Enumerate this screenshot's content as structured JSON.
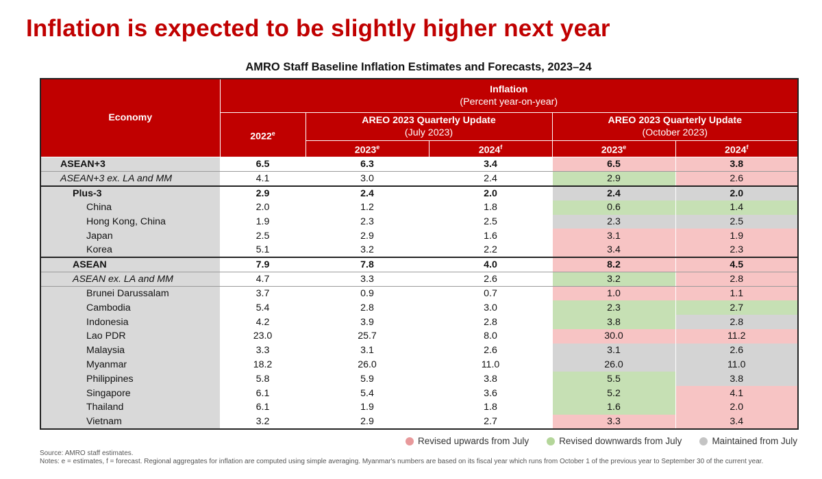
{
  "title": "Inflation is expected to be slightly higher next year",
  "table_title": "AMRO Staff Baseline Inflation Estimates and Forecasts, 2023–24",
  "colors": {
    "accent": "#c00000",
    "up": "#f7c4c4",
    "down": "#c6e0b4",
    "same": "#d4d4d4"
  },
  "header": {
    "economy": "Economy",
    "inflation": "Inflation",
    "inflation_unit": "(Percent year-on-year)",
    "col_2022": "2022",
    "col_2022_sup": "e",
    "july_group": "AREO 2023 Quarterly Update",
    "july_sub": "(July 2023)",
    "oct_group": "AREO 2023 Quarterly Update",
    "oct_sub": "(October 2023)",
    "y2023": "2023",
    "y2023_sup": "e",
    "y2024": "2024",
    "y2024_sup": "f"
  },
  "rows": [
    {
      "name": "ASEAN+3",
      "level": 0,
      "style": "bold",
      "v2022": "6.5",
      "jul2023": "6.3",
      "jul2024": "3.4",
      "oct2023": "6.5",
      "oct2024": "3.8",
      "rev2023": "up",
      "rev2024": "up"
    },
    {
      "name": "ASEAN+3 ex. LA and MM",
      "level": 0,
      "style": "italic",
      "v2022": "4.1",
      "jul2023": "3.0",
      "jul2024": "2.4",
      "oct2023": "2.9",
      "oct2024": "2.6",
      "rev2023": "down",
      "rev2024": "up"
    },
    {
      "name": "Plus-3",
      "level": 1,
      "style": "bold",
      "v2022": "2.9",
      "jul2023": "2.4",
      "jul2024": "2.0",
      "oct2023": "2.4",
      "oct2024": "2.0",
      "rev2023": "same",
      "rev2024": "same"
    },
    {
      "name": "China",
      "level": 2,
      "style": "normal",
      "v2022": "2.0",
      "jul2023": "1.2",
      "jul2024": "1.8",
      "oct2023": "0.6",
      "oct2024": "1.4",
      "rev2023": "down",
      "rev2024": "down"
    },
    {
      "name": "Hong Kong, China",
      "level": 2,
      "style": "normal",
      "v2022": "1.9",
      "jul2023": "2.3",
      "jul2024": "2.5",
      "oct2023": "2.3",
      "oct2024": "2.5",
      "rev2023": "same",
      "rev2024": "same"
    },
    {
      "name": "Japan",
      "level": 2,
      "style": "normal",
      "v2022": "2.5",
      "jul2023": "2.9",
      "jul2024": "1.6",
      "oct2023": "3.1",
      "oct2024": "1.9",
      "rev2023": "up",
      "rev2024": "up"
    },
    {
      "name": "Korea",
      "level": 2,
      "style": "normal",
      "v2022": "5.1",
      "jul2023": "3.2",
      "jul2024": "2.2",
      "oct2023": "3.4",
      "oct2024": "2.3",
      "rev2023": "up",
      "rev2024": "up"
    },
    {
      "name": "ASEAN",
      "level": 1,
      "style": "bold",
      "v2022": "7.9",
      "jul2023": "7.8",
      "jul2024": "4.0",
      "oct2023": "8.2",
      "oct2024": "4.5",
      "rev2023": "up",
      "rev2024": "up"
    },
    {
      "name": "ASEAN ex. LA and MM",
      "level": 1,
      "style": "italic",
      "v2022": "4.7",
      "jul2023": "3.3",
      "jul2024": "2.6",
      "oct2023": "3.2",
      "oct2024": "2.8",
      "rev2023": "down",
      "rev2024": "up"
    },
    {
      "name": "Brunei Darussalam",
      "level": 2,
      "style": "normal",
      "v2022": "3.7",
      "jul2023": "0.9",
      "jul2024": "0.7",
      "oct2023": "1.0",
      "oct2024": "1.1",
      "rev2023": "up",
      "rev2024": "up"
    },
    {
      "name": "Cambodia",
      "level": 2,
      "style": "normal",
      "v2022": "5.4",
      "jul2023": "2.8",
      "jul2024": "3.0",
      "oct2023": "2.3",
      "oct2024": "2.7",
      "rev2023": "down",
      "rev2024": "down"
    },
    {
      "name": "Indonesia",
      "level": 2,
      "style": "normal",
      "v2022": "4.2",
      "jul2023": "3.9",
      "jul2024": "2.8",
      "oct2023": "3.8",
      "oct2024": "2.8",
      "rev2023": "down",
      "rev2024": "same"
    },
    {
      "name": "Lao PDR",
      "level": 2,
      "style": "normal",
      "v2022": "23.0",
      "jul2023": "25.7",
      "jul2024": "8.0",
      "oct2023": "30.0",
      "oct2024": "11.2",
      "rev2023": "up",
      "rev2024": "up"
    },
    {
      "name": "Malaysia",
      "level": 2,
      "style": "normal",
      "v2022": "3.3",
      "jul2023": "3.1",
      "jul2024": "2.6",
      "oct2023": "3.1",
      "oct2024": "2.6",
      "rev2023": "same",
      "rev2024": "same"
    },
    {
      "name": "Myanmar",
      "level": 2,
      "style": "normal",
      "v2022": "18.2",
      "jul2023": "26.0",
      "jul2024": "11.0",
      "oct2023": "26.0",
      "oct2024": "11.0",
      "rev2023": "same",
      "rev2024": "same"
    },
    {
      "name": "Philippines",
      "level": 2,
      "style": "normal",
      "v2022": "5.8",
      "jul2023": "5.9",
      "jul2024": "3.8",
      "oct2023": "5.5",
      "oct2024": "3.8",
      "rev2023": "down",
      "rev2024": "same"
    },
    {
      "name": "Singapore",
      "level": 2,
      "style": "normal",
      "v2022": "6.1",
      "jul2023": "5.4",
      "jul2024": "3.6",
      "oct2023": "5.2",
      "oct2024": "4.1",
      "rev2023": "down",
      "rev2024": "up"
    },
    {
      "name": "Thailand",
      "level": 2,
      "style": "normal",
      "v2022": "6.1",
      "jul2023": "1.9",
      "jul2024": "1.8",
      "oct2023": "1.6",
      "oct2024": "2.0",
      "rev2023": "down",
      "rev2024": "up"
    },
    {
      "name": "Vietnam",
      "level": 2,
      "style": "normal",
      "v2022": "3.2",
      "jul2023": "2.9",
      "jul2024": "2.7",
      "oct2023": "3.3",
      "oct2024": "3.4",
      "rev2023": "up",
      "rev2024": "up"
    }
  ],
  "legend": {
    "up": "Revised upwards from July",
    "down": "Revised downwards from July",
    "same": "Maintained from July"
  },
  "source": "Source: AMRO staff estimates.",
  "notes": "Notes: e = estimates, f = forecast. Regional aggregates for inflation are computed using simple averaging. Myanmar's numbers are based on its fiscal year which runs from October 1 of the previous year to September 30 of the current year."
}
